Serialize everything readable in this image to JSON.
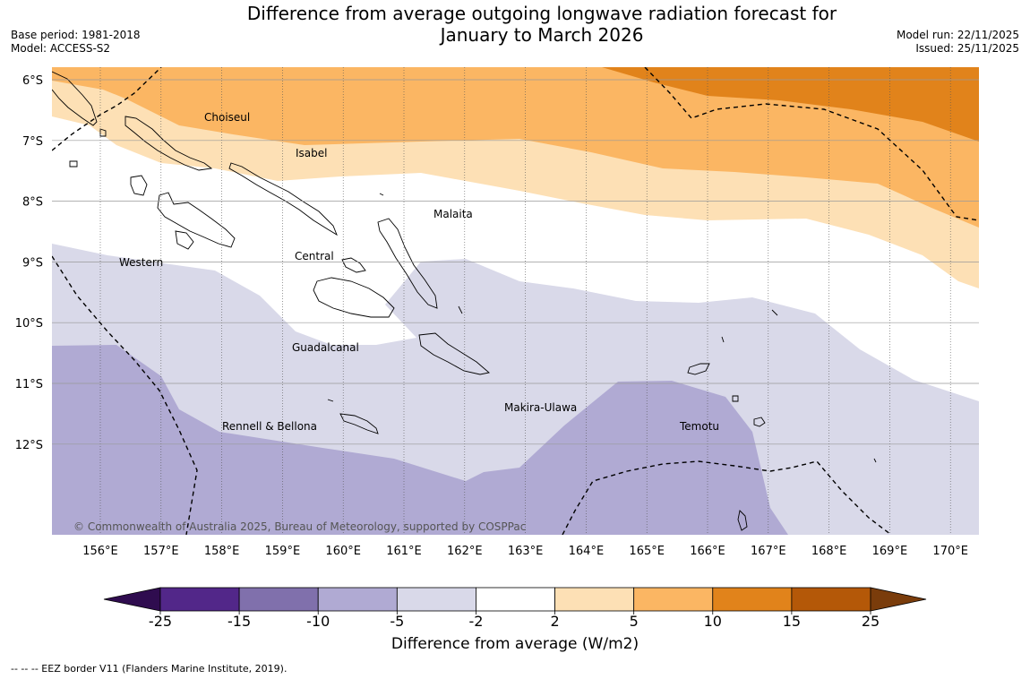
{
  "title_line1": "Difference from average outgoing longwave radiation forecast for",
  "title_line2": "January to March 2026",
  "base_period": "Base period: 1981-2018",
  "model": "Model: ACCESS-S2",
  "model_run": "Model run: 22/11/2025",
  "issued": "Issued: 25/11/2025",
  "copyright": "© Commonwealth of Australia 2025, Bureau of Meteorology, supported by COSPPac",
  "footnote": "-- -- -- EEZ border V11 (Flanders Marine Institute, 2019).",
  "colorbar": {
    "title": "Difference from average (W/m2)",
    "ticks": [
      "-25",
      "-15",
      "-10",
      "-5",
      "-2",
      "2",
      "5",
      "10",
      "15",
      "25"
    ],
    "colors": [
      "#522789",
      "#8070ac",
      "#b0aad3",
      "#d9d9e9",
      "#ffffff",
      "#fde0b5",
      "#fbb663",
      "#e1831b",
      "#b45808"
    ],
    "under_color": "#2f0c4f",
    "over_color": "#7a3c0b"
  },
  "axes": {
    "lon_labels": [
      "156°E",
      "157°E",
      "158°E",
      "159°E",
      "160°E",
      "161°E",
      "162°E",
      "163°E",
      "164°E",
      "165°E",
      "166°E",
      "167°E",
      "168°E",
      "169°E",
      "170°E"
    ],
    "lat_labels": [
      "6°S",
      "7°S",
      "8°S",
      "9°S",
      "10°S",
      "11°S",
      "12°S"
    ]
  },
  "regions": [
    "Choiseul",
    "Isabel",
    "Malaita",
    "Western",
    "Central",
    "Guadalcanal",
    "Makira-Ulawa",
    "Rennell & Bellona",
    "Temotu"
  ]
}
